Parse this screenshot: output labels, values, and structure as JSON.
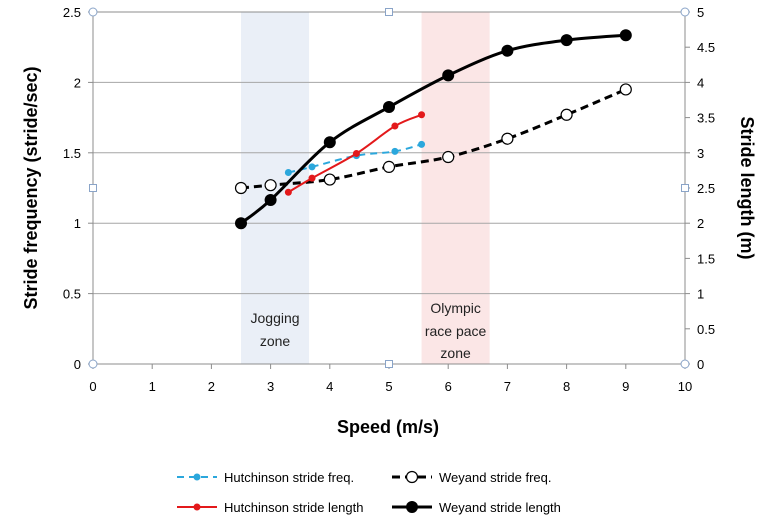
{
  "chart_data": {
    "type": "line",
    "title": "",
    "xlabel": "Speed (m/s)",
    "ylabel": "Stride frequency (stride/sec)",
    "y2label": "Stride length (m)",
    "xlim": [
      0,
      10
    ],
    "ylim": [
      0,
      2.5
    ],
    "y2lim": [
      0,
      5
    ],
    "x_ticks": [
      "0",
      "1",
      "2",
      "3",
      "4",
      "5",
      "6",
      "7",
      "8",
      "9",
      "10"
    ],
    "y_ticks": [
      "0",
      "0.5",
      "1",
      "1.5",
      "2",
      "2.5"
    ],
    "y2_ticks": [
      "0",
      "0.5",
      "1",
      "1.5",
      "2",
      "2.5",
      "3",
      "3.5",
      "4",
      "4.5",
      "5"
    ],
    "grid": true,
    "legend_position": "bottom",
    "zones": [
      {
        "label": [
          "Jogging",
          "zone"
        ],
        "x_start": 2.5,
        "x_end": 3.65,
        "color": "#eaeff7"
      },
      {
        "label": [
          "Olympic",
          "race pace",
          "zone"
        ],
        "x_start": 5.55,
        "x_end": 6.7,
        "color": "#fbe6e6"
      }
    ],
    "series": [
      {
        "name": "Hutchinson stride freq.",
        "axis": "left",
        "color": "#2ba7dc",
        "dash": "dashed",
        "marker": "small-filled",
        "x": [
          3.3,
          3.7,
          4.45,
          5.1,
          5.55
        ],
        "y": [
          1.36,
          1.4,
          1.48,
          1.51,
          1.56
        ]
      },
      {
        "name": "Weyand stride freq.",
        "axis": "left",
        "color": "#000000",
        "dash": "dashed",
        "marker": "open-circle",
        "x": [
          2.5,
          3.0,
          4.0,
          5.0,
          6.0,
          7.0,
          8.0,
          9.0
        ],
        "y": [
          1.25,
          1.27,
          1.31,
          1.4,
          1.47,
          1.6,
          1.77,
          1.95
        ]
      },
      {
        "name": "Hutchinson stride length",
        "axis": "right",
        "color": "#e3191b",
        "dash": "solid",
        "marker": "small-filled",
        "x": [
          3.3,
          3.7,
          4.45,
          5.1,
          5.55
        ],
        "y": [
          2.44,
          2.64,
          2.99,
          3.38,
          3.54
        ]
      },
      {
        "name": "Weyand stride length",
        "axis": "right",
        "color": "#000000",
        "dash": "solid",
        "marker": "large-filled",
        "x": [
          2.5,
          3.0,
          4.0,
          5.0,
          6.0,
          7.0,
          8.0,
          9.0
        ],
        "y": [
          2.0,
          2.33,
          3.15,
          3.65,
          4.1,
          4.45,
          4.6,
          4.67
        ]
      }
    ]
  }
}
